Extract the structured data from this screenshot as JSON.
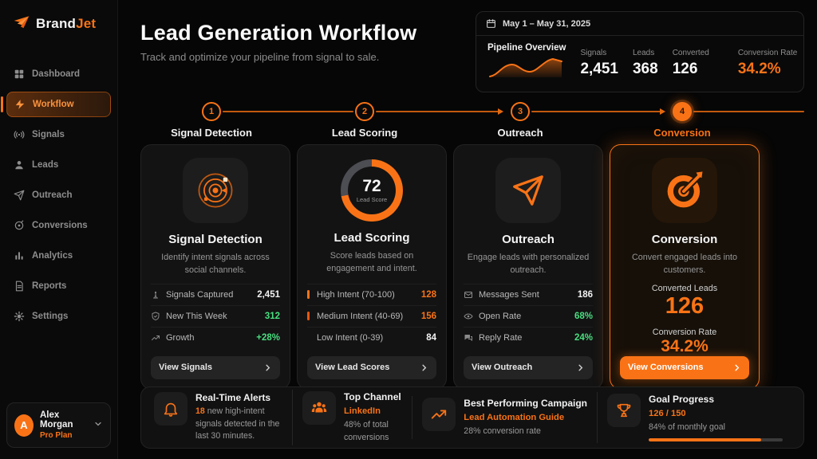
{
  "app": {
    "brand": "Brand",
    "brand_accent": "Jet"
  },
  "sidebar": {
    "items": [
      {
        "label": "Dashboard"
      },
      {
        "label": "Workflow"
      },
      {
        "label": "Signals"
      },
      {
        "label": "Leads"
      },
      {
        "label": "Outreach"
      },
      {
        "label": "Conversions"
      },
      {
        "label": "Analytics"
      },
      {
        "label": "Reports"
      },
      {
        "label": "Settings"
      }
    ],
    "active_item": "Workflow",
    "user": {
      "initial": "A",
      "name": "Alex Morgan",
      "plan": "Pro Plan"
    }
  },
  "header": {
    "title": "Lead Generation Workflow",
    "subtitle": "Track and optimize your pipeline from signal to sale."
  },
  "overview": {
    "date_range": "May 1 – May 31, 2025",
    "label": "Pipeline Overview",
    "stats": [
      {
        "label": "Signals",
        "value": "2,451"
      },
      {
        "label": "Leads",
        "value": "368"
      },
      {
        "label": "Converted",
        "value": "126"
      }
    ],
    "rate": {
      "label": "Conversion Rate",
      "value": "34.2%"
    }
  },
  "steps": [
    {
      "num": "1",
      "label": "Signal Detection"
    },
    {
      "num": "2",
      "label": "Lead Scoring"
    },
    {
      "num": "3",
      "label": "Outreach"
    },
    {
      "num": "4",
      "label": "Conversion"
    }
  ],
  "cards": [
    {
      "title": "Signal Detection",
      "desc": "Identify intent signals across social channels.",
      "rows": [
        {
          "label": "Signals Captured",
          "value": "2,451"
        },
        {
          "label": "New This Week",
          "value": "312"
        },
        {
          "label": "Growth",
          "value": "+28%"
        }
      ],
      "button": "View Signals"
    },
    {
      "title": "Lead Scoring",
      "desc": "Score leads based on engagement and intent.",
      "gauge": {
        "value": "72",
        "label": "Lead Score",
        "percent": 72
      },
      "rows": [
        {
          "label": "High Intent (70-100)",
          "value": "128"
        },
        {
          "label": "Medium Intent (40-69)",
          "value": "156"
        },
        {
          "label": "Low Intent (0-39)",
          "value": "84"
        }
      ],
      "button": "View Lead Scores"
    },
    {
      "title": "Outreach",
      "desc": "Engage leads with personalized outreach.",
      "rows": [
        {
          "label": "Messages Sent",
          "value": "186"
        },
        {
          "label": "Open Rate",
          "value": "68%"
        },
        {
          "label": "Reply Rate",
          "value": "24%"
        }
      ],
      "button": "View Outreach"
    },
    {
      "title": "Conversion",
      "desc": "Convert engaged leads into customers.",
      "metrics": [
        {
          "label": "Converted Leads",
          "value": "126"
        },
        {
          "label": "Conversion Rate",
          "value": "34.2%"
        }
      ],
      "button": "View Conversions"
    }
  ],
  "footer": {
    "items": [
      {
        "title": "Real-Time Alerts",
        "highlight": "18",
        "text": " new high-intent signals detected in the last 30 minutes."
      },
      {
        "title": "Top Channel",
        "highlight": "LinkedIn",
        "text": "48% of total conversions"
      },
      {
        "title": "Best Performing Campaign",
        "highlight": "Lead Automation Guide",
        "text": "28% conversion rate"
      },
      {
        "title": "Goal Progress",
        "highlight": "126 / 150",
        "text": "84% of monthly goal",
        "progress": 84
      }
    ]
  },
  "colors": {
    "accent": "#f97316",
    "green": "#4ade80",
    "gauge_track": "#4d4d54"
  }
}
